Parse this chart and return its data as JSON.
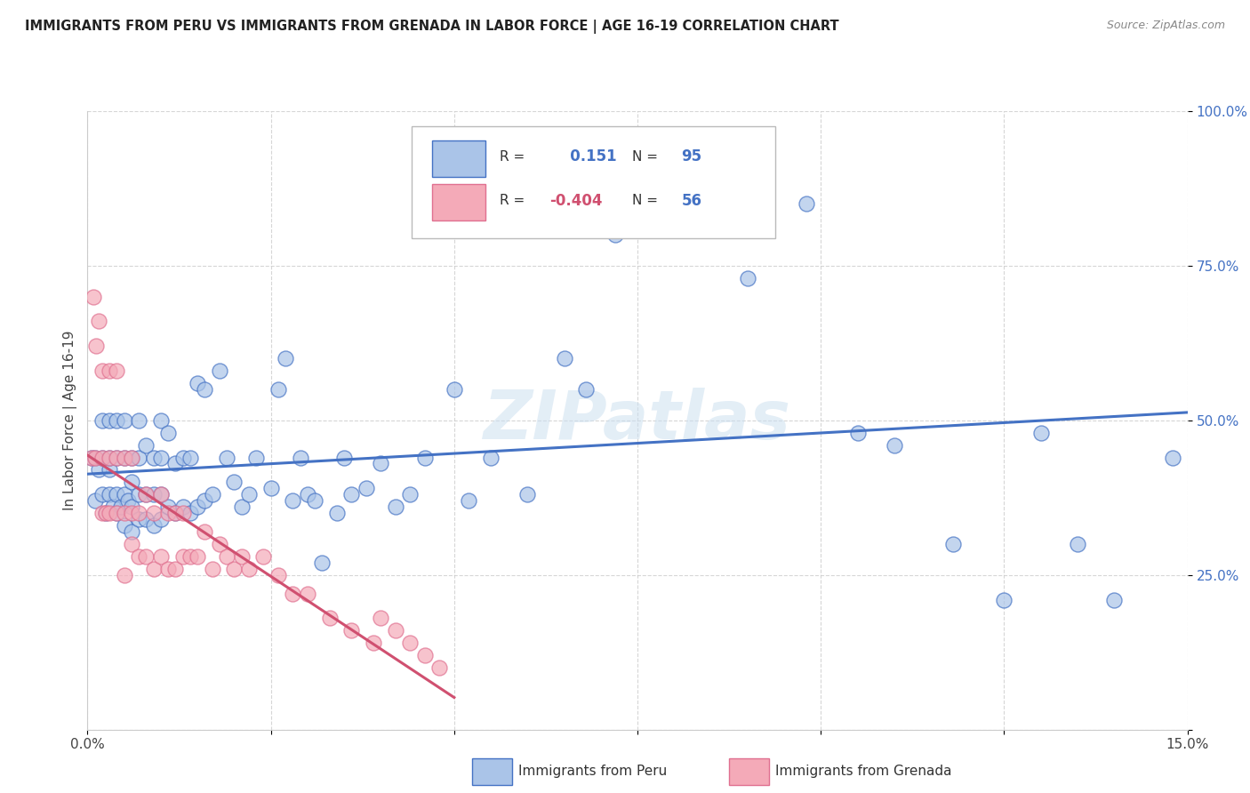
{
  "title": "IMMIGRANTS FROM PERU VS IMMIGRANTS FROM GRENADA IN LABOR FORCE | AGE 16-19 CORRELATION CHART",
  "source": "Source: ZipAtlas.com",
  "ylabel": "In Labor Force | Age 16-19",
  "xmin": 0.0,
  "xmax": 0.15,
  "ymin": 0.0,
  "ymax": 1.0,
  "x_ticks": [
    0.0,
    0.025,
    0.05,
    0.075,
    0.1,
    0.125,
    0.15
  ],
  "x_tick_labels": [
    "0.0%",
    "",
    "",
    "",
    "",
    "",
    "15.0%"
  ],
  "y_ticks": [
    0.0,
    0.25,
    0.5,
    0.75,
    1.0
  ],
  "y_tick_labels": [
    "",
    "25.0%",
    "50.0%",
    "75.0%",
    "100.0%"
  ],
  "peru_color": "#aac4e8",
  "grenada_color": "#f4aab8",
  "peru_edge_color": "#4472c4",
  "grenada_edge_color": "#e07090",
  "peru_line_color": "#4472c4",
  "grenada_line_color": "#d05070",
  "R_peru": 0.151,
  "N_peru": 95,
  "R_grenada": -0.404,
  "N_grenada": 56,
  "legend_peru": "Immigrants from Peru",
  "legend_grenada": "Immigrants from Grenada",
  "watermark": "ZIPatlas",
  "peru_scatter_x": [
    0.0005,
    0.001,
    0.001,
    0.0015,
    0.002,
    0.002,
    0.002,
    0.0025,
    0.003,
    0.003,
    0.003,
    0.003,
    0.0035,
    0.004,
    0.004,
    0.004,
    0.004,
    0.0045,
    0.005,
    0.005,
    0.005,
    0.005,
    0.0055,
    0.006,
    0.006,
    0.006,
    0.006,
    0.007,
    0.007,
    0.007,
    0.007,
    0.008,
    0.008,
    0.008,
    0.009,
    0.009,
    0.009,
    0.01,
    0.01,
    0.01,
    0.01,
    0.011,
    0.011,
    0.012,
    0.012,
    0.013,
    0.013,
    0.014,
    0.014,
    0.015,
    0.015,
    0.016,
    0.016,
    0.017,
    0.018,
    0.019,
    0.02,
    0.021,
    0.022,
    0.023,
    0.025,
    0.026,
    0.027,
    0.028,
    0.029,
    0.03,
    0.031,
    0.032,
    0.034,
    0.035,
    0.036,
    0.038,
    0.04,
    0.042,
    0.044,
    0.046,
    0.05,
    0.052,
    0.055,
    0.06,
    0.065,
    0.068,
    0.072,
    0.08,
    0.085,
    0.09,
    0.098,
    0.105,
    0.11,
    0.118,
    0.125,
    0.13,
    0.135,
    0.14,
    0.148
  ],
  "peru_scatter_y": [
    0.44,
    0.44,
    0.37,
    0.42,
    0.38,
    0.44,
    0.5,
    0.35,
    0.38,
    0.42,
    0.44,
    0.5,
    0.36,
    0.35,
    0.38,
    0.44,
    0.5,
    0.36,
    0.33,
    0.38,
    0.44,
    0.5,
    0.37,
    0.32,
    0.36,
    0.4,
    0.44,
    0.34,
    0.38,
    0.44,
    0.5,
    0.34,
    0.38,
    0.46,
    0.33,
    0.38,
    0.44,
    0.34,
    0.38,
    0.44,
    0.5,
    0.36,
    0.48,
    0.35,
    0.43,
    0.36,
    0.44,
    0.35,
    0.44,
    0.36,
    0.56,
    0.37,
    0.55,
    0.38,
    0.58,
    0.44,
    0.4,
    0.36,
    0.38,
    0.44,
    0.39,
    0.55,
    0.6,
    0.37,
    0.44,
    0.38,
    0.37,
    0.27,
    0.35,
    0.44,
    0.38,
    0.39,
    0.43,
    0.36,
    0.38,
    0.44,
    0.55,
    0.37,
    0.44,
    0.38,
    0.6,
    0.55,
    0.8,
    0.83,
    0.93,
    0.73,
    0.85,
    0.48,
    0.46,
    0.3,
    0.21,
    0.48,
    0.3,
    0.21,
    0.44
  ],
  "grenada_scatter_x": [
    0.0005,
    0.0008,
    0.001,
    0.0012,
    0.0015,
    0.002,
    0.002,
    0.002,
    0.0025,
    0.003,
    0.003,
    0.003,
    0.004,
    0.004,
    0.004,
    0.005,
    0.005,
    0.005,
    0.006,
    0.006,
    0.006,
    0.007,
    0.007,
    0.008,
    0.008,
    0.009,
    0.009,
    0.01,
    0.01,
    0.011,
    0.011,
    0.012,
    0.012,
    0.013,
    0.013,
    0.014,
    0.015,
    0.016,
    0.017,
    0.018,
    0.019,
    0.02,
    0.021,
    0.022,
    0.024,
    0.026,
    0.028,
    0.03,
    0.033,
    0.036,
    0.039,
    0.04,
    0.042,
    0.044,
    0.046,
    0.048
  ],
  "grenada_scatter_y": [
    0.44,
    0.7,
    0.44,
    0.62,
    0.66,
    0.35,
    0.44,
    0.58,
    0.35,
    0.35,
    0.44,
    0.58,
    0.35,
    0.44,
    0.58,
    0.25,
    0.35,
    0.44,
    0.3,
    0.35,
    0.44,
    0.28,
    0.35,
    0.28,
    0.38,
    0.26,
    0.35,
    0.28,
    0.38,
    0.26,
    0.35,
    0.26,
    0.35,
    0.28,
    0.35,
    0.28,
    0.28,
    0.32,
    0.26,
    0.3,
    0.28,
    0.26,
    0.28,
    0.26,
    0.28,
    0.25,
    0.22,
    0.22,
    0.18,
    0.16,
    0.14,
    0.18,
    0.16,
    0.14,
    0.12,
    0.1
  ]
}
